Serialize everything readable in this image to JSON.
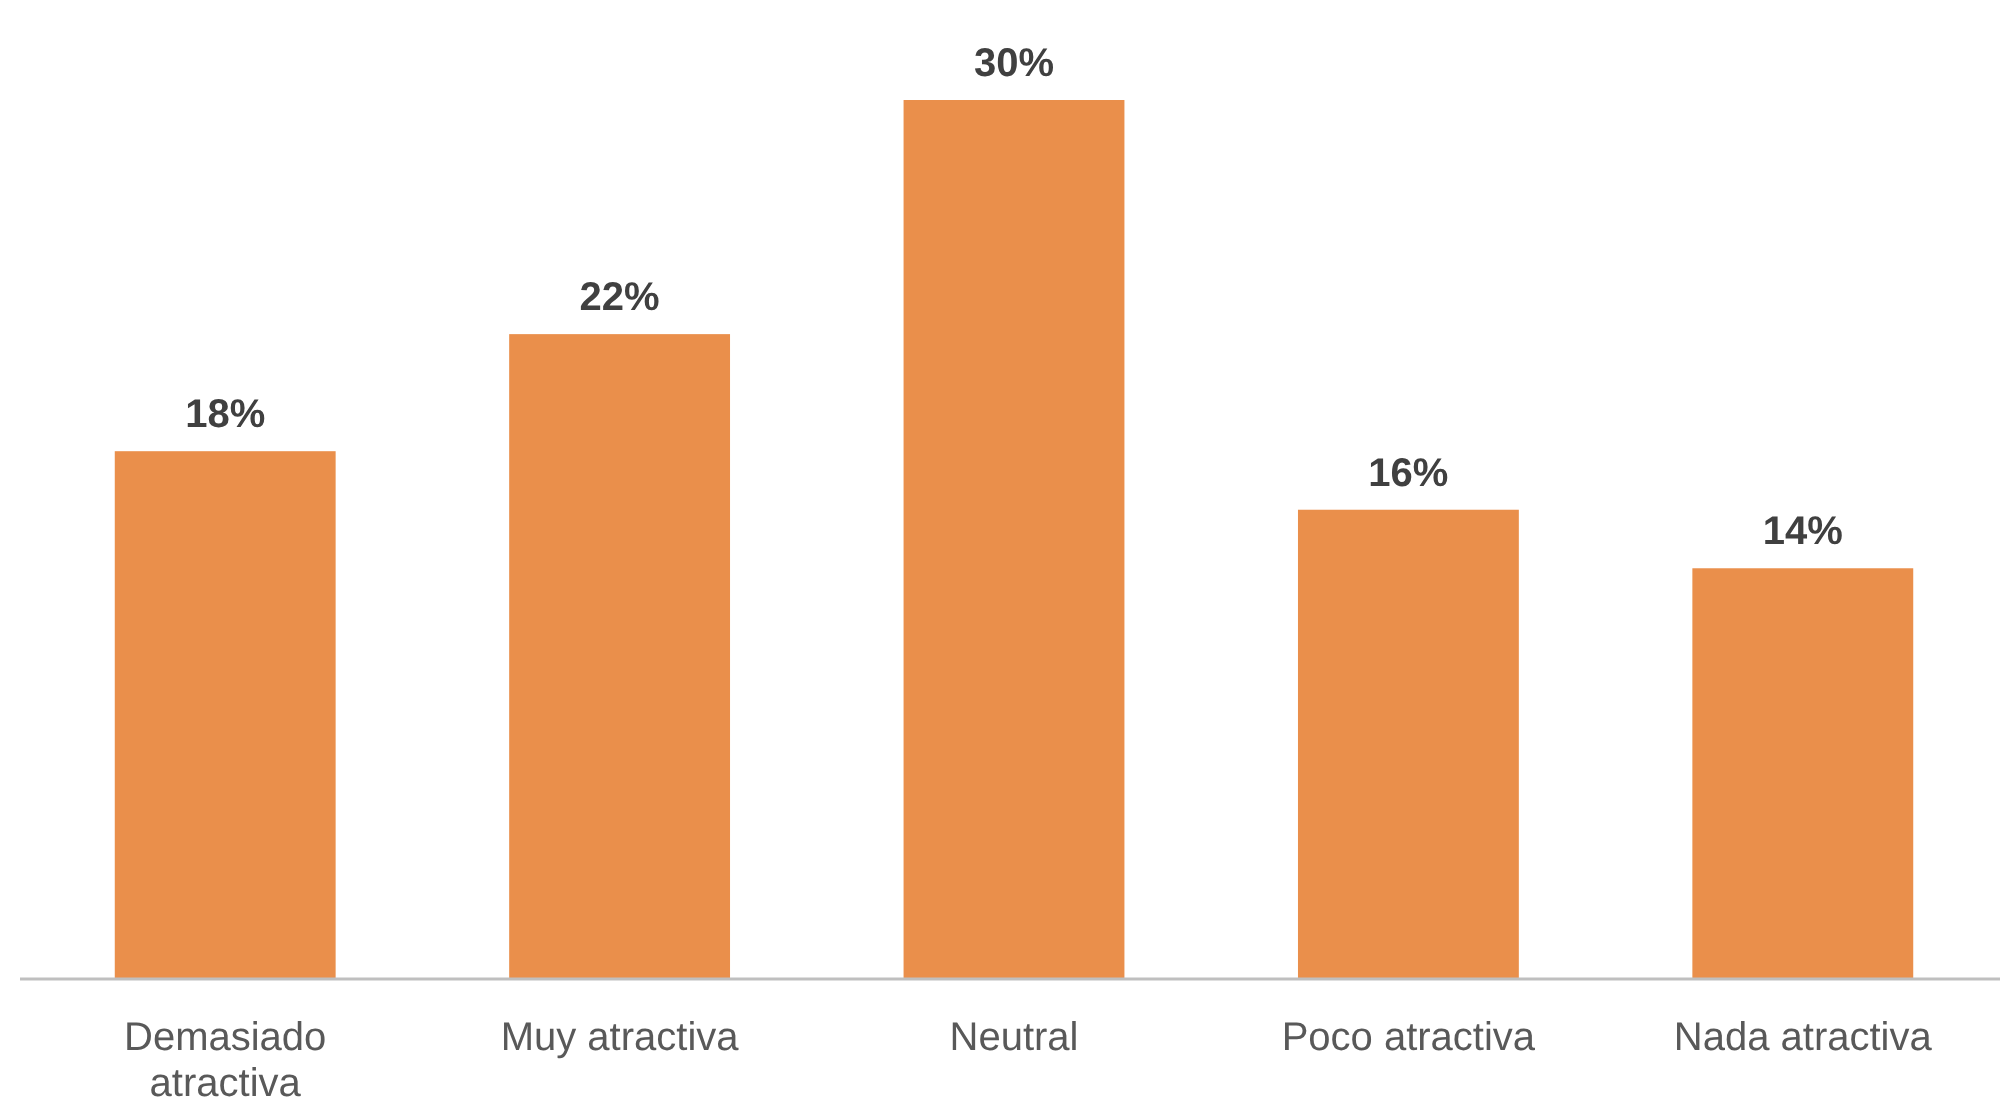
{
  "chart_data": {
    "type": "bar",
    "categories": [
      "Demasiado atractiva",
      "Muy atractiva",
      "Neutral",
      "Poco atractiva",
      "Nada atractiva"
    ],
    "values": [
      18,
      22,
      30,
      16,
      14
    ],
    "value_labels": [
      "18%",
      "22%",
      "30%",
      "16%",
      "14%"
    ],
    "color": "#ea8f4b"
  }
}
